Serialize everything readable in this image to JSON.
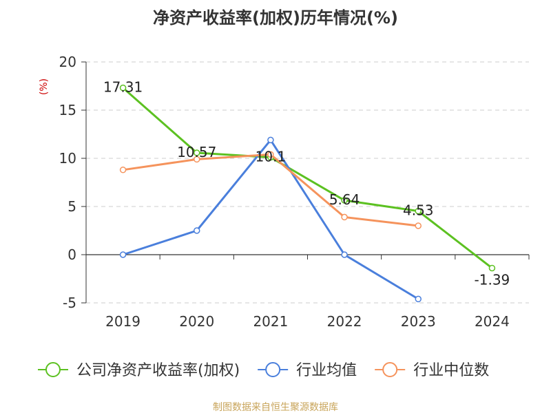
{
  "chart_data": {
    "type": "line",
    "title": "净资产收益率(加权)历年情况(%)",
    "ylabel": "(%)",
    "xlabel": "",
    "categories": [
      "2019",
      "2020",
      "2021",
      "2022",
      "2023",
      "2024"
    ],
    "ylim": [
      -5,
      20
    ],
    "yticks": [
      -5,
      0,
      5,
      10,
      15,
      20
    ],
    "grid": true,
    "legend_position": "bottom",
    "series": [
      {
        "name": "公司净资产收益率(加权)",
        "color": "#5cc121",
        "values": [
          17.31,
          10.57,
          10.1,
          5.64,
          4.53,
          -1.39
        ],
        "labels": [
          "17.31",
          "10.57",
          "10.1",
          "5.64",
          "4.53",
          "-1.39"
        ]
      },
      {
        "name": "行业均值",
        "color": "#4a7fdc",
        "values": [
          0,
          2.5,
          11.9,
          0,
          -4.6,
          null
        ]
      },
      {
        "name": "行业中位数",
        "color": "#f5935c",
        "values": [
          8.8,
          9.9,
          10.4,
          3.9,
          3.0,
          null
        ]
      }
    ],
    "source": "制图数据来自恒生聚源数据库",
    "colors": {
      "title": "#333333",
      "axis": "#333333",
      "grid": "#cccccc",
      "ylabel": "#cc0000",
      "source": "#c8a45a"
    }
  }
}
